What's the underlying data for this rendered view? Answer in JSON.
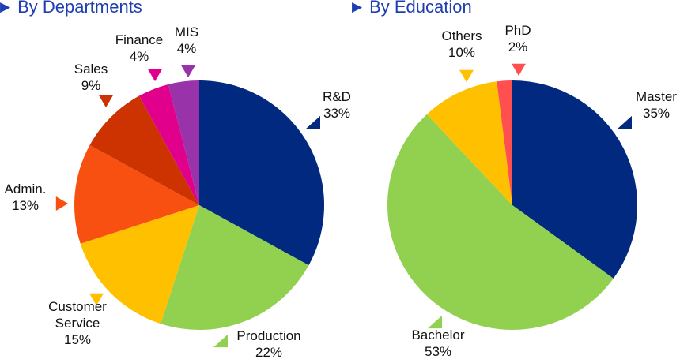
{
  "chart_data": [
    {
      "type": "pie",
      "title": "By Departments",
      "slices": [
        {
          "label": "R&D",
          "value": 33,
          "color": "#00297F"
        },
        {
          "label": "Production",
          "value": 22,
          "color": "#92D050"
        },
        {
          "label": "Customer Service",
          "value": 15,
          "color": "#FFC000"
        },
        {
          "label": "Admin.",
          "value": 13,
          "color": "#F85011"
        },
        {
          "label": "Sales",
          "value": 9,
          "color": "#CC3300"
        },
        {
          "label": "Finance",
          "value": 4,
          "color": "#E0008C"
        },
        {
          "label": "MIS",
          "value": 4,
          "color": "#9933AA"
        }
      ]
    },
    {
      "type": "pie",
      "title": "By Education",
      "slices": [
        {
          "label": "Master",
          "value": 35,
          "color": "#00297F"
        },
        {
          "label": "Bachelor",
          "value": 53,
          "color": "#92D050"
        },
        {
          "label": "Others",
          "value": 10,
          "color": "#FFC000"
        },
        {
          "label": "PhD",
          "value": 2,
          "color": "#FF4F4F"
        }
      ]
    }
  ]
}
